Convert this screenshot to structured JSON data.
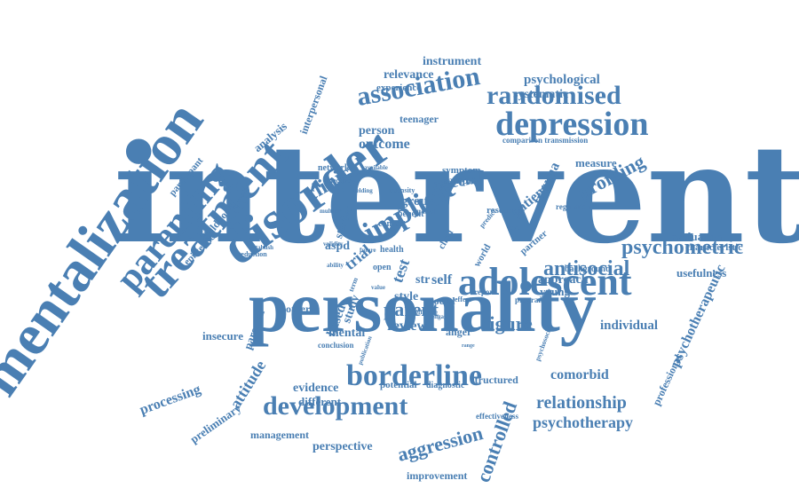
{
  "cloud": {
    "color": "#4a7fb3",
    "words": [
      "intervention",
      "personality",
      "mentalization",
      "disorder",
      "treatment",
      "parenting",
      "adolescent",
      "depression",
      "implicit",
      "association",
      "randomised",
      "borderline",
      "development",
      "psychometric",
      "antisocial",
      "profiling",
      "clinical",
      "aggression",
      "controlled",
      "relationship",
      "psychotherapy",
      "figure",
      "parent",
      "review",
      "style",
      "social",
      "esteem",
      "outcome",
      "psychological",
      "instrument",
      "relevance",
      "systematic",
      "person",
      "teenager",
      "evaluation",
      "characteristic",
      "usefulness",
      "individual",
      "psychotherapeutic",
      "professional",
      "comorbid",
      "structured",
      "potential",
      "diagnostic",
      "evidence",
      "different",
      "attitude",
      "processing",
      "preliminary",
      "management",
      "perspective",
      "improvement",
      "effectiveness",
      "mental",
      "anger",
      "mother",
      "parental",
      "insecure",
      "epistemic",
      "childhood",
      "participant",
      "analysis",
      "interpersonal",
      "network",
      "experience",
      "symptom",
      "sample",
      "measure",
      "comparison transmission",
      "trauma",
      "patient",
      "research",
      "regulation",
      "approach",
      "young",
      "background",
      "partner",
      "self",
      "trial",
      "test",
      "group",
      "based",
      "studies",
      "study",
      "aspd",
      "context",
      "benefit",
      "intensity",
      "selective",
      "multiple",
      "yielding",
      "available",
      "romantic",
      "general",
      "health",
      "conclusion",
      "publication",
      "psychosocial",
      "world",
      "child",
      "str",
      "open",
      "value",
      "validity",
      "ability",
      "establish",
      "reduction",
      "effect",
      "predict",
      "level",
      "term",
      "range",
      "report",
      "engage",
      "program",
      "effective",
      "future",
      "therapy"
    ]
  }
}
